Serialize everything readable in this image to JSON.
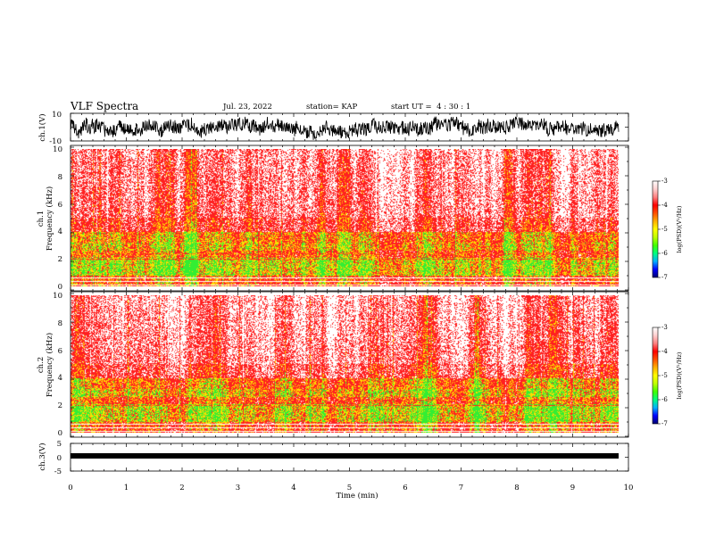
{
  "header": {
    "title": "VLF Spectra",
    "date": "Jul. 23, 2022",
    "station": "station= KAP",
    "start": "start UT =  4 : 30 : 1"
  },
  "colors": {
    "spectrogram": [
      "#ffffff",
      "#ff2020",
      "#ffdd00",
      "#33ee33"
    ],
    "colorbar": [
      "#000070",
      "#0000ff",
      "#00b0ff",
      "#00ff80",
      "#40ff00",
      "#c0ff00",
      "#ffff00",
      "#ffb000",
      "#ff5000",
      "#ff0000",
      "#ff8080",
      "#ffd0d0",
      "#ffffff"
    ],
    "trace": "#000000"
  },
  "chart_data": [
    {
      "type": "line",
      "panel": "ch1-waveform",
      "ylabel": "ch.1(V)",
      "ylim": [
        -10,
        10
      ],
      "yticks": [
        "10",
        "-10"
      ],
      "xlim": [
        0,
        10
      ],
      "note": "noisy waveform, amplitude about ±7 V"
    },
    {
      "type": "heatmap",
      "panel": "ch1-spectrogram",
      "ylabel": [
        "ch.1",
        "Frequency (kHz)"
      ],
      "ylim": [
        0,
        10
      ],
      "yticks": [
        "0",
        "2",
        "4",
        "6",
        "8",
        "10"
      ],
      "xlim": [
        0,
        10
      ],
      "colorbar": {
        "label": "log(PSD)(V²/Hz)",
        "range": [
          -7,
          -3
        ],
        "ticks": [
          "-3",
          "-4",
          "-5",
          "-6",
          "-7"
        ]
      }
    },
    {
      "type": "heatmap",
      "panel": "ch2-spectrogram",
      "ylabel": [
        "ch.2",
        "Frequency (kHz)"
      ],
      "ylim": [
        0,
        10
      ],
      "yticks": [
        "0",
        "2",
        "4",
        "6",
        "8",
        "10"
      ],
      "xlim": [
        0,
        10
      ],
      "colorbar": {
        "label": "log(PSD)(V²/Hz)",
        "range": [
          -7,
          -3
        ],
        "ticks": [
          "-3",
          "-4",
          "-5",
          "-6",
          "-7"
        ]
      }
    },
    {
      "type": "line",
      "panel": "ch3-waveform",
      "ylabel": "ch.3(V)",
      "ylim": [
        -5,
        5
      ],
      "yticks": [
        "5",
        "0",
        "-5"
      ],
      "xlim": [
        0,
        10
      ],
      "xlabel": "Time (min)",
      "xticks": [
        "0",
        "1",
        "2",
        "3",
        "4",
        "5",
        "6",
        "7",
        "8",
        "9",
        "10"
      ],
      "note": "dense band near -1.5 V"
    }
  ]
}
